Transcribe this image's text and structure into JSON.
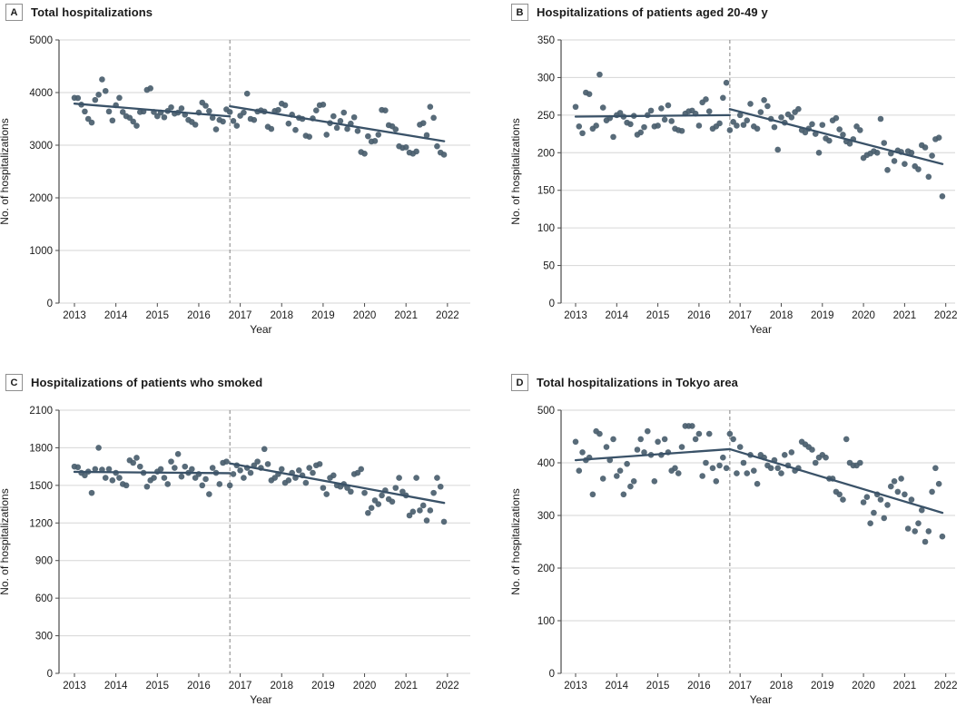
{
  "colors": {
    "point": "#4a5e6e",
    "trend": "#3a5268",
    "grid": "#d6d6d6",
    "axis": "#4a4a4a",
    "dash": "#828282",
    "text": "#1a1a1a",
    "letterbox_border": "#8f8f8f"
  },
  "chart_data": [
    {
      "type": "scatter",
      "panel_label": "A",
      "title": "Total hospitalizations",
      "xlabel": "Year",
      "ylabel": "No. of hospitalizations",
      "xticks": [
        2013,
        2014,
        2015,
        2016,
        2017,
        2018,
        2019,
        2020,
        2021,
        2022
      ],
      "yticks": [
        0,
        1000,
        2000,
        3000,
        4000,
        5000
      ],
      "ylim": [
        0,
        5000
      ],
      "xlim": [
        2012.6,
        2022.35
      ],
      "intervention_x": 2016.75,
      "x_start": 2013,
      "x_step": 0.0833,
      "values": [
        3900,
        3895,
        3770,
        3640,
        3500,
        3430,
        3860,
        3960,
        4250,
        4030,
        3640,
        3470,
        3760,
        3900,
        3630,
        3550,
        3520,
        3450,
        3370,
        3630,
        3640,
        4050,
        4080,
        3630,
        3550,
        3620,
        3530,
        3650,
        3720,
        3600,
        3620,
        3700,
        3580,
        3480,
        3440,
        3390,
        3620,
        3810,
        3750,
        3650,
        3520,
        3300,
        3480,
        3450,
        3680,
        3630,
        3460,
        3370,
        3560,
        3620,
        3980,
        3500,
        3480,
        3640,
        3660,
        3640,
        3350,
        3310,
        3650,
        3670,
        3790,
        3760,
        3410,
        3580,
        3290,
        3520,
        3500,
        3180,
        3160,
        3510,
        3660,
        3760,
        3770,
        3200,
        3420,
        3550,
        3330,
        3460,
        3620,
        3310,
        3410,
        3530,
        3270,
        2870,
        2840,
        3170,
        3070,
        3080,
        3200,
        3670,
        3660,
        3380,
        3360,
        3300,
        2980,
        2950,
        2960,
        2860,
        2840,
        2880,
        3390,
        3420,
        3190,
        3730,
        3520,
        2980,
        2860,
        2820
      ],
      "trend_pre": {
        "x": [
          2013.0,
          2016.75
        ],
        "y": [
          3790,
          3548
        ]
      },
      "trend_post": {
        "x": [
          2016.75,
          2021.92
        ],
        "y": [
          3740,
          3076
        ]
      }
    },
    {
      "type": "scatter",
      "panel_label": "B",
      "title": "Hospitalizations of patients aged 20-49 y",
      "xlabel": "Year",
      "ylabel": "No. of hospitalizations",
      "xticks": [
        2013,
        2014,
        2015,
        2016,
        2017,
        2018,
        2019,
        2020,
        2021,
        2022
      ],
      "yticks": [
        0,
        50,
        100,
        150,
        200,
        250,
        300,
        350
      ],
      "ylim": [
        0,
        350
      ],
      "xlim": [
        2012.6,
        2022.35
      ],
      "intervention_x": 2016.75,
      "x_start": 2013,
      "x_step": 0.0833,
      "values": [
        261,
        235,
        226,
        280,
        278,
        232,
        236,
        304,
        260,
        243,
        246,
        221,
        250,
        253,
        248,
        240,
        238,
        249,
        224,
        227,
        234,
        250,
        256,
        235,
        236,
        259,
        244,
        263,
        242,
        232,
        230,
        229,
        252,
        255,
        256,
        252,
        236,
        267,
        271,
        255,
        232,
        235,
        239,
        273,
        293,
        230,
        241,
        236,
        250,
        237,
        243,
        265,
        235,
        232,
        254,
        270,
        262,
        245,
        234,
        204,
        247,
        240,
        251,
        247,
        254,
        258,
        230,
        227,
        232,
        238,
        225,
        200,
        237,
        219,
        216,
        243,
        246,
        231,
        224,
        215,
        212,
        218,
        235,
        230,
        193,
        197,
        199,
        202,
        200,
        245,
        213,
        177,
        199,
        189,
        203,
        201,
        185,
        202,
        200,
        182,
        178,
        210,
        207,
        168,
        196,
        218,
        220,
        142
      ],
      "trend_pre": {
        "x": [
          2013.0,
          2016.75
        ],
        "y": [
          248,
          250
        ]
      },
      "trend_post": {
        "x": [
          2016.75,
          2021.92
        ],
        "y": [
          258,
          185
        ]
      }
    },
    {
      "type": "scatter",
      "panel_label": "C",
      "title": "Hospitalizations of patients who smoked",
      "xlabel": "Year",
      "ylabel": "No. of hospitalizations",
      "xticks": [
        2013,
        2014,
        2015,
        2016,
        2017,
        2018,
        2019,
        2020,
        2021,
        2022
      ],
      "yticks": [
        0,
        300,
        600,
        900,
        1200,
        1500,
        1800,
        2100
      ],
      "ylim": [
        0,
        2100
      ],
      "xlim": [
        2012.6,
        2022.35
      ],
      "intervention_x": 2016.75,
      "x_start": 2013,
      "x_step": 0.0833,
      "values": [
        1650,
        1645,
        1600,
        1580,
        1610,
        1440,
        1630,
        1800,
        1625,
        1560,
        1630,
        1540,
        1600,
        1560,
        1510,
        1500,
        1700,
        1680,
        1720,
        1650,
        1600,
        1490,
        1540,
        1560,
        1610,
        1630,
        1560,
        1510,
        1690,
        1640,
        1750,
        1570,
        1650,
        1600,
        1630,
        1560,
        1590,
        1500,
        1550,
        1430,
        1640,
        1600,
        1510,
        1680,
        1690,
        1500,
        1590,
        1660,
        1620,
        1560,
        1640,
        1600,
        1660,
        1690,
        1640,
        1790,
        1670,
        1540,
        1560,
        1590,
        1630,
        1520,
        1540,
        1600,
        1560,
        1620,
        1580,
        1520,
        1640,
        1600,
        1660,
        1670,
        1480,
        1430,
        1560,
        1580,
        1500,
        1490,
        1510,
        1480,
        1450,
        1590,
        1600,
        1630,
        1440,
        1280,
        1320,
        1380,
        1350,
        1420,
        1460,
        1390,
        1370,
        1480,
        1560,
        1450,
        1420,
        1260,
        1290,
        1560,
        1300,
        1340,
        1220,
        1300,
        1440,
        1560,
        1490,
        1210
      ],
      "trend_pre": {
        "x": [
          2013.0,
          2016.75
        ],
        "y": [
          1608,
          1597
        ]
      },
      "trend_post": {
        "x": [
          2016.75,
          2021.92
        ],
        "y": [
          1675,
          1360
        ]
      }
    },
    {
      "type": "scatter",
      "panel_label": "D",
      "title": "Total hospitalizations in Tokyo area",
      "xlabel": "Year",
      "ylabel": "No. of hospitalizations",
      "xticks": [
        2013,
        2014,
        2015,
        2016,
        2017,
        2018,
        2019,
        2020,
        2021,
        2022
      ],
      "yticks": [
        0,
        100,
        200,
        300,
        400,
        500
      ],
      "ylim": [
        0,
        500
      ],
      "xlim": [
        2012.6,
        2022.35
      ],
      "intervention_x": 2016.75,
      "x_start": 2013,
      "x_step": 0.0833,
      "values": [
        440,
        385,
        420,
        405,
        410,
        340,
        460,
        455,
        370,
        430,
        405,
        445,
        375,
        385,
        340,
        398,
        355,
        365,
        425,
        445,
        420,
        460,
        415,
        365,
        440,
        415,
        445,
        420,
        385,
        390,
        380,
        430,
        470,
        470,
        470,
        445,
        455,
        375,
        400,
        455,
        390,
        365,
        395,
        410,
        390,
        455,
        445,
        380,
        430,
        400,
        380,
        415,
        385,
        360,
        415,
        410,
        395,
        390,
        405,
        390,
        380,
        415,
        395,
        420,
        385,
        390,
        440,
        435,
        430,
        425,
        400,
        410,
        415,
        410,
        370,
        370,
        345,
        340,
        330,
        445,
        400,
        395,
        395,
        400,
        325,
        335,
        285,
        305,
        340,
        330,
        295,
        320,
        355,
        365,
        345,
        370,
        340,
        275,
        330,
        270,
        285,
        310,
        250,
        270,
        345,
        390,
        360,
        260
      ],
      "trend_pre": {
        "x": [
          2013.0,
          2016.75
        ],
        "y": [
          405,
          426
        ]
      },
      "trend_post": {
        "x": [
          2016.75,
          2021.92
        ],
        "y": [
          426,
          305
        ]
      }
    }
  ]
}
